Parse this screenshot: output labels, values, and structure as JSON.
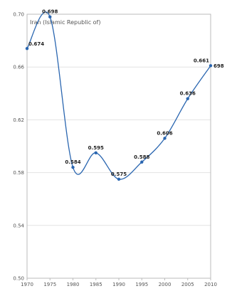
{
  "chart_data": {
    "type": "line",
    "title": "",
    "xlabel": "",
    "ylabel": "",
    "plot_caption": "Iran (Islamic Republic of)",
    "x": [
      1970,
      1975,
      1980,
      1985,
      1990,
      1995,
      2000,
      2005,
      2010
    ],
    "series": [
      {
        "name": "",
        "values": [
          0.674,
          0.698,
          0.584,
          0.595,
          0.575,
          0.588,
          0.606,
          0.636,
          0.661
        ],
        "value_labels": [
          "0.674",
          "0.698",
          "0.584",
          "0.595",
          "0.575",
          "0.588",
          "0.606",
          "0.636",
          "0.661"
        ],
        "color": "#2a66b0"
      }
    ],
    "end_label": "698",
    "xlim": [
      1970,
      2010
    ],
    "ylim": [
      0.5,
      0.7
    ],
    "y_ticks": [
      0.5,
      0.54,
      0.58,
      0.62,
      0.66,
      0.7
    ],
    "y_tick_labels": [
      "0.50",
      "0.54",
      "0.58",
      "0.62",
      "0.66",
      "0.70"
    ],
    "x_ticks": [
      1970,
      1975,
      1980,
      1985,
      1990,
      1995,
      2000,
      2005,
      2010
    ],
    "x_tick_labels": [
      "1970",
      "1975",
      "1980",
      "1985",
      "1990",
      "1995",
      "2000",
      "2005",
      "2010"
    ],
    "grid": "horizontal",
    "legend": "none"
  }
}
